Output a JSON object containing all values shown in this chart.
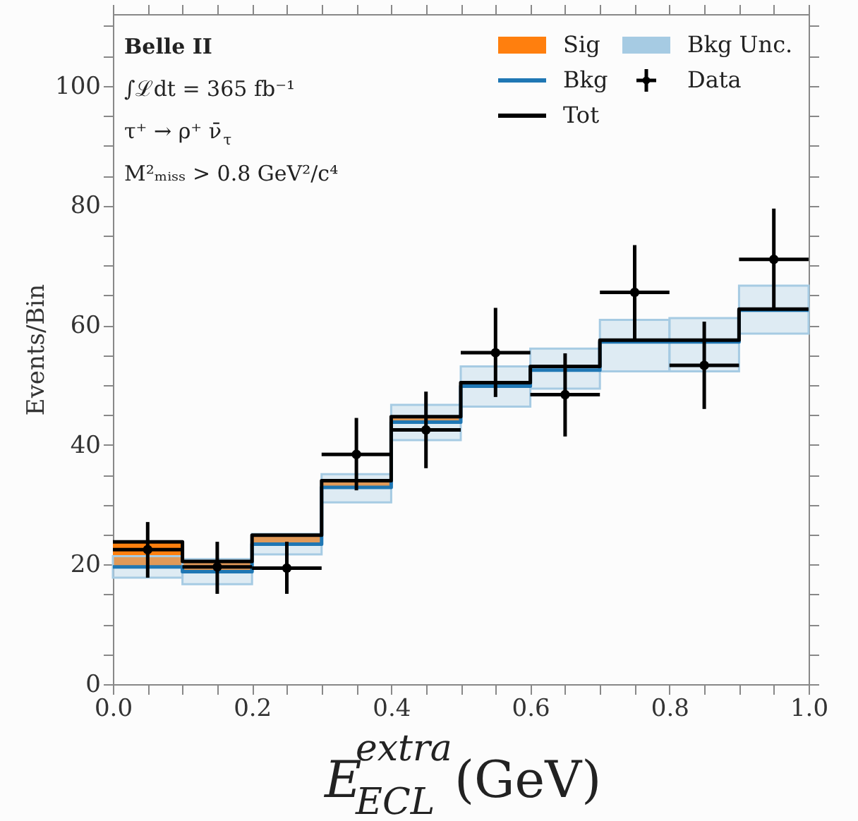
{
  "chart_data": {
    "type": "step",
    "xlabel": "E$^{extra}$$_{ECL}$(GeV)",
    "ylabel": "Events/Bin",
    "annotations": [
      "Belle II",
      "∫ℒdt = 365 fb⁻¹",
      "τ⁺ → ρ⁺ ν̄$_{τ}$",
      "M²ₘᵢₛₛ > 0.8 GeV²/c⁴"
    ],
    "x": [
      0.0,
      0.1,
      0.2,
      0.3,
      0.4,
      0.5,
      0.6,
      0.7,
      0.8,
      0.9,
      1.0
    ],
    "series": [
      {
        "name": "Sig",
        "type": "bar",
        "color": "#ff7f0e",
        "x": [
          0.05,
          0.15,
          0.25,
          0.35,
          0.45
        ],
        "values": [
          4.2,
          1.7,
          1.5,
          1.1,
          0.9
        ],
        "base": [
          19.6,
          18.8,
          23.4,
          32.9,
          43.8
        ]
      },
      {
        "name": "Bkg",
        "color": "#1f77b4",
        "values": [
          19.6,
          18.8,
          23.4,
          32.9,
          43.8,
          49.8,
          52.5,
          57.2,
          57.2,
          62.5,
          62.5
        ]
      },
      {
        "name": "Tot",
        "color": "#000000",
        "values": [
          23.8,
          20.5,
          24.9,
          34.0,
          44.7,
          50.4,
          53.1,
          57.5,
          57.5,
          62.7,
          62.7
        ]
      },
      {
        "name": "Bkg Unc.",
        "type": "bar",
        "color": "#a6cbe3",
        "x": [
          0.05,
          0.15,
          0.25,
          0.35,
          0.45,
          0.55,
          0.65,
          0.75,
          0.85,
          0.95
        ],
        "values": [
          3.6,
          4.2,
          3.4,
          4.7,
          5.9,
          6.7,
          6.7,
          8.6,
          8.9,
          8.0
        ],
        "base": [
          17.8,
          16.7,
          21.7,
          30.4,
          40.8,
          46.4,
          49.4,
          52.3,
          52.3,
          58.6
        ]
      },
      {
        "name": "Data",
        "type": "scatter",
        "color": "#000000",
        "marker": "circle",
        "x": [
          0.05,
          0.15,
          0.25,
          0.35,
          0.45,
          0.55,
          0.65,
          0.75,
          0.85,
          0.95
        ],
        "values": [
          22.5,
          19.6,
          19.4,
          38.4,
          42.5,
          55.4,
          48.4,
          65.5,
          53.3,
          71.0
        ],
        "errors": [
          [
            17.8,
            27.1
          ],
          [
            15.1,
            23.8
          ],
          [
            15.1,
            23.8
          ],
          [
            32.4,
            44.5
          ],
          [
            36.1,
            48.9
          ],
          [
            48.0,
            62.9
          ],
          [
            41.4,
            55.3
          ],
          [
            57.6,
            73.4
          ],
          [
            46.0,
            60.6
          ],
          [
            62.7,
            79.5
          ]
        ],
        "xerrors": [
          0.05,
          0.05,
          0.05,
          0.05,
          0.05,
          0.05,
          0.05,
          0.05,
          0.05,
          0.05
        ]
      }
    ],
    "xlim": [
      0.0,
      1.0
    ],
    "xticks": [
      {
        "value": 0.0,
        "label": "0.0"
      },
      {
        "value": 0.05,
        "label": null
      },
      {
        "value": 0.1,
        "label": null
      },
      {
        "value": 0.15,
        "label": null
      },
      {
        "value": 0.2,
        "label": "0.2"
      },
      {
        "value": 0.25,
        "label": null
      },
      {
        "value": 0.3,
        "label": null
      },
      {
        "value": 0.35,
        "label": null
      },
      {
        "value": 0.4,
        "label": "0.4"
      },
      {
        "value": 0.45,
        "label": null
      },
      {
        "value": 0.5,
        "label": null
      },
      {
        "value": 0.55,
        "label": null
      },
      {
        "value": 0.6,
        "label": "0.6"
      },
      {
        "value": 0.65,
        "label": null
      },
      {
        "value": 0.7,
        "label": null
      },
      {
        "value": 0.75,
        "label": null
      },
      {
        "value": 0.8,
        "label": "0.8"
      },
      {
        "value": 0.85,
        "label": null
      },
      {
        "value": 0.9,
        "label": null
      },
      {
        "value": 0.95,
        "label": null
      },
      {
        "value": 1.0,
        "label": "1.0"
      }
    ],
    "ylim": [
      0,
      112
    ],
    "yticks": [
      0,
      {
        "value": 5,
        "label": null
      },
      {
        "value": 10,
        "label": null
      },
      {
        "value": 15,
        "label": null
      },
      20,
      {
        "value": 25,
        "label": null
      },
      {
        "value": 30,
        "label": null
      },
      {
        "value": 35,
        "label": null
      },
      40,
      {
        "value": 45,
        "label": null
      },
      {
        "value": 50,
        "label": null
      },
      {
        "value": 55,
        "label": null
      },
      60,
      {
        "value": 65,
        "label": null
      },
      {
        "value": 70,
        "label": null
      },
      {
        "value": 75,
        "label": null
      },
      80,
      {
        "value": 85,
        "label": null
      },
      {
        "value": 90,
        "label": null
      },
      {
        "value": 95,
        "label": null
      },
      100,
      {
        "value": 105,
        "label": null
      },
      {
        "value": 110,
        "label": null
      }
    ],
    "grid": false,
    "legend": "top right"
  }
}
